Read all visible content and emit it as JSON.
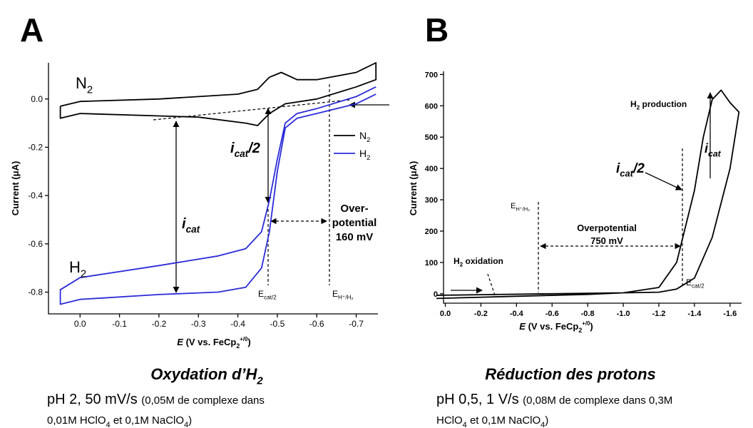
{
  "chart_data": [
    {
      "type": "line",
      "label": "A",
      "ylabel": "Current (μA)",
      "xlabel": [
        {
          "text": "E",
          "style": "italic"
        },
        " (V vs. FeCp",
        {
          "text": "2",
          "style": "sub"
        },
        {
          "text": "+/0",
          "style": "sup"
        },
        ")"
      ],
      "xlim": [
        0.08,
        -0.755
      ],
      "ylim": [
        -0.89,
        0.15
      ],
      "xticks": [
        {
          "value": 0,
          "label": "0.0"
        },
        -0.1,
        -0.2,
        -0.3,
        -0.4,
        -0.5,
        -0.6,
        -0.7
      ],
      "yticks": [
        {
          "value": 0,
          "label": "0.0"
        },
        -0.2,
        -0.4,
        -0.6,
        -0.8
      ],
      "legend": "right",
      "series": [
        {
          "name": [
            "N",
            {
              "text": "2",
              "style": "sub"
            }
          ],
          "color": "#000000",
          "x": [
            0.05,
            0,
            -0.2,
            -0.4,
            -0.45,
            -0.48,
            -0.51,
            -0.55,
            -0.6,
            -0.7,
            -0.75,
            -0.75,
            -0.7,
            -0.6,
            -0.52,
            -0.48,
            -0.45,
            -0.42,
            -0.3,
            -0.2,
            0,
            0.05,
            0.05
          ],
          "values": [
            -0.03,
            -0.01,
            0.0,
            0.02,
            0.04,
            0.09,
            0.11,
            0.08,
            0.08,
            0.11,
            0.15,
            0.08,
            0.05,
            0.0,
            -0.02,
            -0.06,
            -0.11,
            -0.1,
            -0.075,
            -0.07,
            -0.06,
            -0.08,
            -0.03
          ]
        },
        {
          "name": [
            "H",
            {
              "text": "2",
              "style": "sub"
            }
          ],
          "color": "#2b2bd9",
          "x": [
            -0.75,
            -0.7,
            -0.6,
            -0.55,
            -0.52,
            -0.5,
            -0.48,
            -0.46,
            -0.42,
            -0.35,
            -0.2,
            0,
            0.05,
            0.05,
            0,
            -0.2,
            -0.35,
            -0.42,
            -0.46,
            -0.48,
            -0.5,
            -0.52,
            -0.55,
            -0.6,
            -0.7,
            -0.75
          ],
          "values": [
            0.05,
            0.01,
            -0.04,
            -0.06,
            -0.1,
            -0.25,
            -0.42,
            -0.55,
            -0.62,
            -0.65,
            -0.69,
            -0.74,
            -0.79,
            -0.85,
            -0.83,
            -0.81,
            -0.8,
            -0.78,
            -0.7,
            -0.55,
            -0.3,
            -0.12,
            -0.08,
            -0.06,
            -0.02,
            0.02
          ]
        }
      ],
      "annotations": [
        [
          "N",
          {
            "text": "2",
            "style": "sub"
          }
        ],
        [
          "H",
          {
            "text": "2",
            "style": "sub"
          }
        ],
        [
          "i",
          {
            "text": "cat",
            "style": "sub"
          },
          "/2"
        ],
        [
          "i",
          {
            "text": "cat",
            "style": "sub"
          }
        ],
        "Over-",
        "potential",
        "160 mV",
        [
          "E",
          {
            "text": "cat/2",
            "style": "sub"
          }
        ],
        [
          "E",
          {
            "text": "H⁺/H₂",
            "style": "sub"
          }
        ]
      ],
      "caption_title": [
        "Oxydation d’H",
        {
          "text": "2",
          "style": "sub"
        }
      ],
      "caption": [
        [
          "pH 2, 50 mV/s ",
          {
            "text": "(0,05M de complexe dans",
            "style": "small"
          }
        ],
        [
          {
            "text": "0,01M HClO",
            "style": "small"
          },
          {
            "text": "4",
            "style": "smallsub"
          },
          {
            "text": " et 0,1M NaClO",
            "style": "small"
          },
          {
            "text": "4",
            "style": "smallsub"
          },
          {
            "text": ")",
            "style": "small"
          }
        ]
      ]
    },
    {
      "type": "line",
      "label": "B",
      "ylabel": "Current (μA)",
      "xlabel": [
        {
          "text": "E",
          "style": "italic"
        },
        " (V vs. FeCp",
        {
          "text": "2",
          "style": "sub"
        },
        {
          "text": "+/0",
          "style": "sup"
        },
        ")"
      ],
      "xlim": [
        0.01,
        -1.665
      ],
      "ylim": [
        -30,
        710
      ],
      "xticks": [
        {
          "value": 0,
          "label": "0.0"
        },
        -0.2,
        -0.4,
        -0.6,
        -0.8,
        {
          "value": -1,
          "label": "-1.0"
        },
        -1.2,
        -1.4,
        -1.6
      ],
      "yticks": [
        0,
        100,
        200,
        300,
        400,
        500,
        600,
        700
      ],
      "series": [
        {
          "color": "#000000",
          "x": [
            0.05,
            -0.4,
            -0.8,
            -1.0,
            -1.2,
            -1.3,
            -1.4,
            -1.45,
            -1.5,
            -1.55,
            -1.6,
            -1.65,
            -1.65,
            -1.6,
            -1.5,
            -1.4,
            -1.3,
            -1.2,
            -1.0,
            -0.6,
            -0.2,
            0.05
          ],
          "values": [
            -15,
            -8,
            -2,
            3,
            20,
            100,
            330,
            500,
            620,
            650,
            610,
            580,
            580,
            400,
            180,
            50,
            15,
            5,
            3,
            0,
            -3,
            -5
          ]
        }
      ],
      "annotations": [
        [
          "H",
          {
            "text": "2",
            "style": "sub"
          },
          " production"
        ],
        [
          "i",
          {
            "text": "cat",
            "style": "sub"
          }
        ],
        [
          "i",
          {
            "text": "cat",
            "style": "sub"
          },
          "/2"
        ],
        [
          "E",
          {
            "text": "H⁺/H₂",
            "style": "sub"
          }
        ],
        "Overpotential",
        "750 mV",
        [
          "H",
          {
            "text": "2",
            "style": "sub"
          },
          " oxidation"
        ],
        [
          "E",
          {
            "text": "cat/2",
            "style": "sub"
          }
        ]
      ],
      "caption_title": "Réduction des protons",
      "caption": [
        [
          "pH 0,5, 1 V/s ",
          {
            "text": "(0,08M de complexe dans 0,3M",
            "style": "small"
          }
        ],
        [
          {
            "text": "HClO",
            "style": "small"
          },
          {
            "text": "4",
            "style": "smallsub"
          },
          {
            "text": " et 0,1M NaClO",
            "style": "small"
          },
          {
            "text": "4",
            "style": "smallsub"
          },
          {
            "text": ")",
            "style": "small"
          }
        ]
      ]
    }
  ]
}
